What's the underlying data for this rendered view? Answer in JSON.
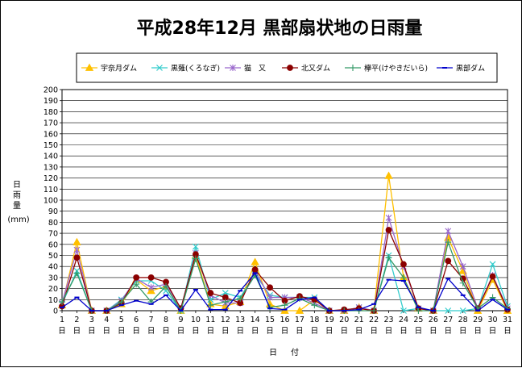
{
  "chart_data": {
    "type": "line",
    "title": "平成28年12月 黒部扇状地の日雨量",
    "xlabel_top": "日",
    "xlabel_bottom": "付",
    "ylabel_lines": [
      "日",
      "雨",
      "量"
    ],
    "yunit": "(mm)",
    "ylim": [
      0,
      200
    ],
    "ytick_step": 10,
    "grid": "horizontal",
    "legend_position": "top",
    "categories": [
      "1",
      "2",
      "3",
      "4",
      "5",
      "6",
      "7",
      "8",
      "9",
      "10",
      "11",
      "12",
      "13",
      "14",
      "15",
      "16",
      "17",
      "18",
      "19",
      "20",
      "21",
      "22",
      "23",
      "24",
      "25",
      "26",
      "27",
      "28",
      "29",
      "30",
      "31"
    ],
    "day_suffix": "日",
    "series": [
      {
        "name": "宇奈月ダム",
        "color": "#FFC000",
        "marker": "triangle",
        "values": [
          5,
          62,
          0,
          0,
          6,
          28,
          18,
          22,
          0,
          50,
          6,
          4,
          8,
          44,
          6,
          0,
          0,
          10,
          0,
          0,
          3,
          0,
          122,
          30,
          2,
          0,
          66,
          36,
          0,
          28,
          0
        ]
      },
      {
        "name": "黒薙(くろなぎ)",
        "color": "#33CCCC",
        "marker": "x",
        "values": [
          6,
          36,
          0,
          0,
          10,
          27,
          27,
          18,
          0,
          58,
          10,
          16,
          12,
          33,
          14,
          12,
          12,
          12,
          0,
          0,
          3,
          0,
          50,
          0,
          2,
          0,
          0,
          0,
          2,
          42,
          4
        ]
      },
      {
        "name": "猫　又",
        "color": "#9966CC",
        "marker": "asterisk",
        "values": [
          7,
          55,
          0,
          0,
          9,
          29,
          21,
          24,
          2,
          52,
          14,
          7,
          7,
          36,
          12,
          12,
          12,
          7,
          0,
          0,
          3,
          0,
          84,
          40,
          2,
          0,
          72,
          40,
          2,
          32,
          2
        ]
      },
      {
        "name": "北又ダム",
        "color": "#8B0000",
        "marker": "circle",
        "values": [
          4,
          48,
          0,
          0,
          7,
          30,
          30,
          26,
          2,
          51,
          16,
          12,
          7,
          37,
          21,
          9,
          13,
          10,
          0,
          1,
          2,
          0,
          73,
          42,
          2,
          0,
          45,
          29,
          2,
          31,
          1
        ]
      },
      {
        "name": "欅平(けやきだいら)",
        "color": "#339966",
        "marker": "plus",
        "values": [
          8,
          34,
          0,
          0,
          8,
          24,
          8,
          22,
          0,
          47,
          5,
          8,
          11,
          32,
          3,
          5,
          11,
          5,
          0,
          0,
          0,
          0,
          48,
          30,
          0,
          0,
          62,
          25,
          2,
          12,
          2
        ]
      },
      {
        "name": "黒部ダム",
        "color": "#0000CC",
        "marker": "dash",
        "values": [
          3,
          12,
          0,
          0,
          5,
          9,
          6,
          14,
          0,
          19,
          1,
          1,
          18,
          34,
          2,
          1,
          10,
          12,
          0,
          0,
          1,
          6,
          28,
          27,
          3,
          0,
          29,
          14,
          0,
          10,
          1
        ]
      }
    ]
  }
}
